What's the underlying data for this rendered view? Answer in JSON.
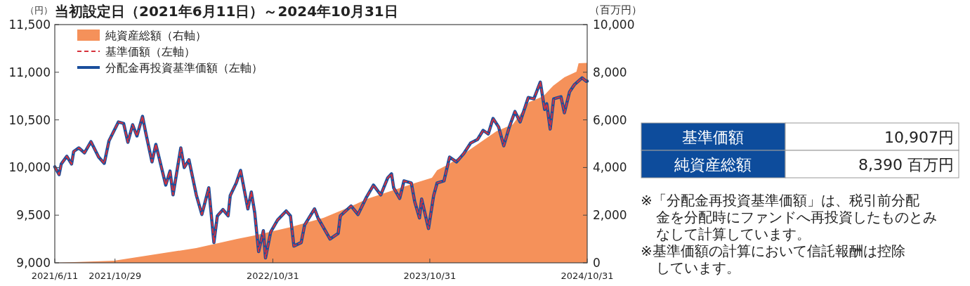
{
  "chart_data": {
    "type": "line",
    "title": "当初設定日（2021年6月11日）～2024年10月31日",
    "ylabel": "（円）",
    "y2label": "（百万円）",
    "x": [
      "2021-06-11",
      "2021-06-21",
      "2021-06-26",
      "2021-07-09",
      "2021-07-20",
      "2021-07-25",
      "2021-08-06",
      "2021-08-19",
      "2021-09-03",
      "2021-09-21",
      "2021-10-04",
      "2021-10-15",
      "2021-11-06",
      "2021-11-18",
      "2021-11-28",
      "2021-12-09",
      "2021-12-19",
      "2022-01-01",
      "2022-01-08",
      "2022-01-23",
      "2022-02-01",
      "2022-02-24",
      "2022-03-06",
      "2022-03-13",
      "2022-03-31",
      "2022-04-08",
      "2022-04-19",
      "2022-05-06",
      "2022-05-19",
      "2022-06-04",
      "2022-06-16",
      "2022-06-24",
      "2022-07-07",
      "2022-07-19",
      "2022-07-24",
      "2022-08-07",
      "2022-08-17",
      "2022-09-03",
      "2022-09-11",
      "2022-09-19",
      "2022-09-28",
      "2022-10-09",
      "2022-10-14",
      "2022-10-26",
      "2022-11-11",
      "2022-12-01",
      "2022-12-11",
      "2022-12-19",
      "2023-01-05",
      "2023-01-13",
      "2023-02-05",
      "2023-02-13",
      "2023-03-13",
      "2023-04-01",
      "2023-04-06",
      "2023-05-01",
      "2023-05-17",
      "2023-06-06",
      "2023-06-22",
      "2023-07-09",
      "2023-07-25",
      "2023-08-03",
      "2023-08-08",
      "2023-08-22",
      "2023-09-01",
      "2023-09-18",
      "2023-09-26",
      "2023-10-07",
      "2023-10-12",
      "2023-10-28",
      "2023-11-09",
      "2023-11-17",
      "2023-12-03",
      "2023-12-16",
      "2024-01-01",
      "2024-01-18",
      "2024-02-03",
      "2024-02-19",
      "2024-03-03",
      "2024-03-15",
      "2024-03-26",
      "2024-04-08",
      "2024-04-20",
      "2024-05-03",
      "2024-05-16",
      "2024-05-28",
      "2024-06-16",
      "2024-06-29",
      "2024-07-14",
      "2024-07-24",
      "2024-07-29",
      "2024-08-06",
      "2024-08-14",
      "2024-08-31",
      "2024-09-08",
      "2024-09-20",
      "2024-10-01",
      "2024-10-19",
      "2024-10-29",
      "2024-10-31"
    ],
    "series": [
      {
        "name": "純資産総額（右軸）",
        "type": "area",
        "axis": "y2",
        "color": "#f5915a",
        "x": [
          "2021-06-11",
          "2021-10-27",
          "2022-05-06",
          "2022-08-09",
          "2022-09-19",
          "2022-12-11",
          "2023-02-26",
          "2023-04-18",
          "2023-06-11",
          "2023-09-29",
          "2023-11-05",
          "2023-11-17",
          "2023-12-16",
          "2024-02-08",
          "2024-04-03",
          "2024-05-11",
          "2024-06-18",
          "2024-07-21",
          "2024-08-13",
          "2024-09-08",
          "2024-10-06",
          "2024-10-11",
          "2024-10-31"
        ],
        "values": [
          0,
          90,
          620,
          1000,
          1150,
          1500,
          1890,
          2270,
          2710,
          3360,
          3570,
          3890,
          4160,
          4840,
          5520,
          5810,
          6750,
          6990,
          7430,
          7790,
          8020,
          8380,
          8390
        ]
      },
      {
        "name": "基準価額（左軸）",
        "line_style": "dashed",
        "color": "#d6323c",
        "values": [
          10007,
          9926,
          10037,
          10118,
          10037,
          10169,
          10206,
          10154,
          10272,
          10110,
          10044,
          10279,
          10478,
          10463,
          10265,
          10449,
          10331,
          10537,
          10375,
          10059,
          10243,
          9816,
          9963,
          9713,
          10206,
          10000,
          10081,
          9713,
          9507,
          9787,
          9213,
          9493,
          9559,
          9493,
          9706,
          9838,
          9970,
          9566,
          9743,
          9522,
          9118,
          9338,
          9051,
          9324,
          9449,
          9544,
          9493,
          9176,
          9213,
          9397,
          9566,
          9471,
          9250,
          9309,
          9493,
          9596,
          9507,
          9691,
          9816,
          9713,
          9890,
          9934,
          9787,
          9676,
          9860,
          9838,
          9640,
          9471,
          9669,
          9360,
          9706,
          9838,
          9860,
          10110,
          10059,
          10147,
          10257,
          10294,
          10390,
          10353,
          10515,
          10426,
          10228,
          10426,
          10588,
          10478,
          10735,
          10721,
          10897,
          10610,
          10669,
          10404,
          10721,
          10743,
          10574,
          10794,
          10868,
          10941,
          10904,
          10907
        ]
      },
      {
        "name": "分配金再投資基準価額（左軸）",
        "line_style": "solid",
        "color": "#1a4f9c",
        "values": [
          10007,
          9926,
          10037,
          10118,
          10037,
          10169,
          10206,
          10154,
          10272,
          10110,
          10044,
          10279,
          10478,
          10463,
          10265,
          10449,
          10331,
          10537,
          10375,
          10059,
          10243,
          9816,
          9963,
          9713,
          10206,
          10000,
          10081,
          9713,
          9507,
          9787,
          9213,
          9493,
          9559,
          9493,
          9706,
          9838,
          9970,
          9566,
          9743,
          9522,
          9118,
          9338,
          9051,
          9324,
          9449,
          9544,
          9493,
          9176,
          9213,
          9397,
          9566,
          9471,
          9250,
          9309,
          9493,
          9596,
          9507,
          9691,
          9816,
          9713,
          9890,
          9934,
          9787,
          9676,
          9860,
          9838,
          9640,
          9471,
          9669,
          9360,
          9706,
          9838,
          9860,
          10110,
          10059,
          10147,
          10257,
          10294,
          10390,
          10353,
          10515,
          10426,
          10228,
          10426,
          10588,
          10478,
          10735,
          10721,
          10897,
          10610,
          10669,
          10404,
          10721,
          10743,
          10574,
          10794,
          10868,
          10941,
          10904,
          10907
        ]
      }
    ],
    "xlim": [
      "2021-06-11",
      "2024-10-31"
    ],
    "xticks": [
      {
        "value": "2021-06-11",
        "label": "2021/6/11"
      },
      {
        "value": "2021-10-29",
        "label": "2021/10/29"
      },
      {
        "value": "2022-10-31",
        "label": "2022/10/31"
      },
      {
        "value": "2023-10-31",
        "label": "2023/10/31"
      },
      {
        "value": "2024-10-31",
        "label": "2024/10/31"
      }
    ],
    "ylim": [
      9000,
      11500
    ],
    "yticks": [
      {
        "value": 9000,
        "label": "9,000"
      },
      {
        "value": 9500,
        "label": "9,500"
      },
      {
        "value": 10000,
        "label": "10,000"
      },
      {
        "value": 10500,
        "label": "10,500"
      },
      {
        "value": 11000,
        "label": "11,000"
      },
      {
        "value": 11500,
        "label": "11,500"
      }
    ],
    "y2lim": [
      0,
      10000
    ],
    "y2ticks": [
      0,
      {
        "value": 2000,
        "label": "2,000"
      },
      {
        "value": 4000,
        "label": "4,000"
      },
      {
        "value": 6000,
        "label": "6,000"
      },
      {
        "value": 8000,
        "label": "8,000"
      },
      {
        "value": 10000,
        "label": "10,000"
      }
    ],
    "legend": "top left",
    "annotations": [
      "基準価額",
      "10,907円",
      "純資産総額",
      "8,390 百万円",
      "※「分配金再投資基準価額」は、税引前分配金を分配時にファンドへ再投資したものとみなして計算しています。",
      "※基準価額の計算において信託報酬は控除しています。"
    ]
  }
}
